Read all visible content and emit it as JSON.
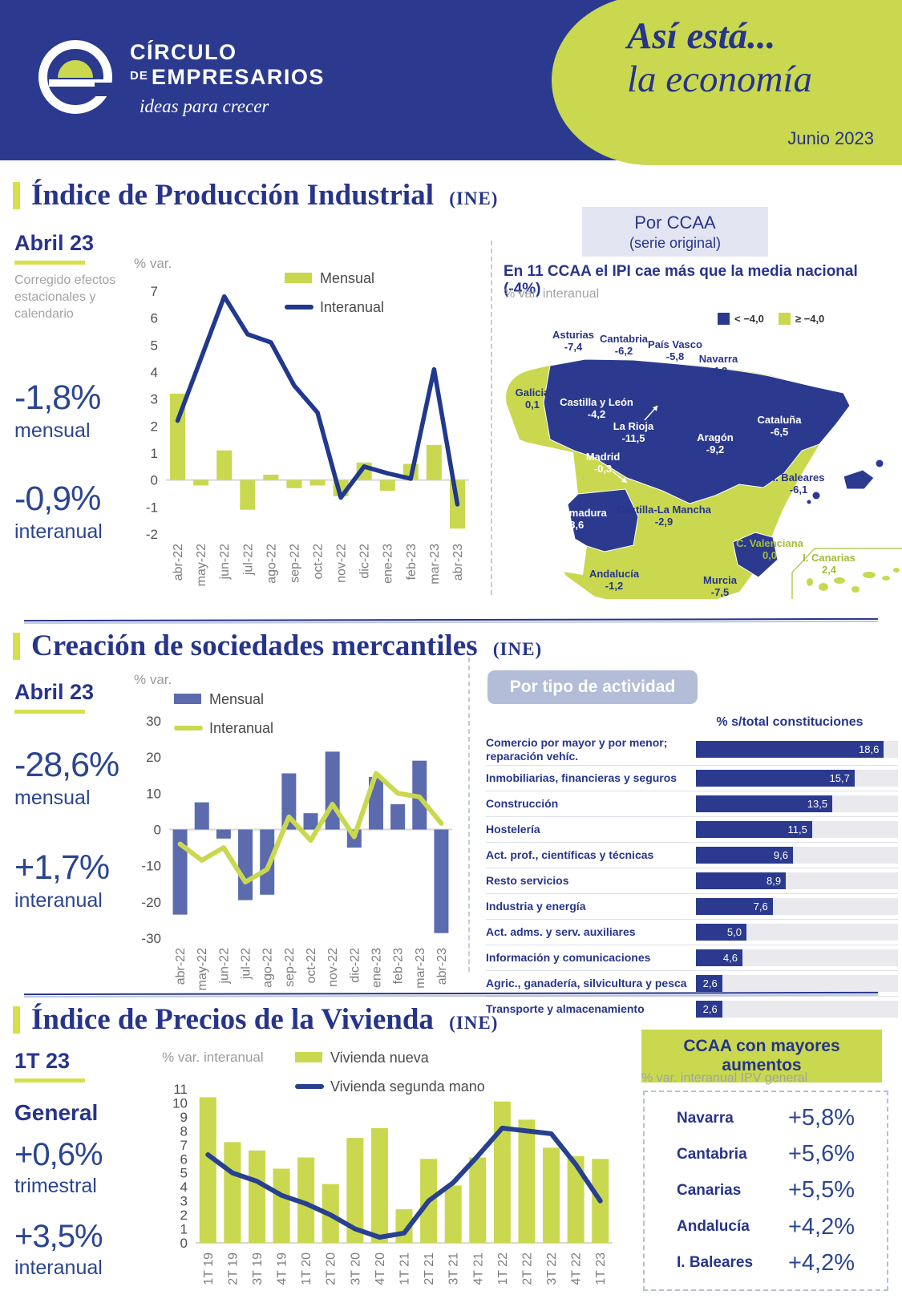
{
  "colors": {
    "navy": "#2b3a8f",
    "navyDark": "#27348b",
    "statBlue": "#2b4590",
    "lime": "#c9d84e",
    "socBar": "#5b6bae",
    "lineBlue": "#21388f",
    "grayNote": "#a3a3a3"
  },
  "header": {
    "logo_line1": "CÍRCULO",
    "logo_line2_small": "DE",
    "logo_line2": "EMPRESARIOS",
    "logo_tagline": "ideas para crecer",
    "title_line1": "Así está...",
    "title_line2": "la economía",
    "date": "Junio 2023"
  },
  "sections": {
    "ipi": {
      "title": "Índice de Producción Industrial",
      "source": "(INE)",
      "period": "Abril 23",
      "note": "Corregido efectos estacionales y calendario",
      "stat1_value": "-1,8%",
      "stat1_label": "mensual",
      "stat2_value": "-0,9%",
      "stat2_label": "interanual",
      "panel_box_line1": "Por CCAA",
      "panel_box_line2": "(serie original)"
    },
    "sociedades": {
      "title": "Creación de sociedades mercantiles",
      "source": "(INE)",
      "period": "Abril 23",
      "stat1_value": "-28,6%",
      "stat1_label": "mensual",
      "stat2_value": "+1,7%",
      "stat2_label": "interanual",
      "panel_box": "Por tipo de actividad"
    },
    "vivienda": {
      "title": "Índice de Precios de la Vivienda",
      "source": "(INE)",
      "period": "1T 23",
      "subject": "General",
      "stat1_value": "+0,6%",
      "stat1_label": "trimestral",
      "stat2_value": "+3,5%",
      "stat2_label": "interanual"
    }
  },
  "chart_data": [
    {
      "id": "ipi_combo",
      "type": "bar+line",
      "title": "% var.",
      "categories": [
        "abr-22",
        "may-22",
        "jun-22",
        "jul-22",
        "ago-22",
        "sep-22",
        "oct-22",
        "nov-22",
        "dic-22",
        "ene-23",
        "feb-23",
        "mar-23",
        "abr-23"
      ],
      "series": [
        {
          "name": "Mensual",
          "type": "bar",
          "color": "#c9d84e",
          "values": [
            3.2,
            -0.2,
            1.1,
            -1.1,
            0.2,
            -0.3,
            -0.2,
            -0.6,
            0.65,
            -0.4,
            0.6,
            1.3,
            -1.8
          ]
        },
        {
          "name": "Interanual",
          "type": "line",
          "color": "#21388f",
          "values": [
            2.2,
            4.5,
            6.8,
            5.4,
            5.1,
            3.5,
            2.5,
            -0.65,
            0.5,
            0.25,
            0.05,
            4.1,
            -0.9
          ]
        }
      ],
      "ylim": [
        -2,
        7
      ],
      "ystep": 1,
      "legend_position": "top-center",
      "grid": false
    },
    {
      "id": "ipi_map",
      "type": "map",
      "title": "En 11 CCAA el IPI cae más que la media nacional (-4%)",
      "note": "% var. interanual",
      "legend": [
        {
          "label": "< −4,0",
          "color": "#2b3a8f"
        },
        {
          "label": "≥ −4,0",
          "color": "#c9d84e"
        }
      ],
      "regions": [
        {
          "name": "Asturias",
          "value": "-7,4",
          "fill": "blue",
          "text": "navy",
          "x": 95,
          "y": 14
        },
        {
          "name": "Cantabria",
          "value": "-6,2",
          "fill": "blue",
          "text": "navy",
          "x": 158,
          "y": 19
        },
        {
          "name": "País Vasco",
          "value": "-5,8",
          "fill": "blue",
          "text": "navy",
          "x": 222,
          "y": 26
        },
        {
          "name": "Navarra",
          "value": "-4,2",
          "fill": "blue",
          "text": "navy",
          "x": 276,
          "y": 44
        },
        {
          "name": "Galicia",
          "value": "0,1",
          "fill": "green",
          "text": "navy",
          "x": 44,
          "y": 86
        },
        {
          "name": "Castilla y León",
          "value": "-4,2",
          "fill": "blue",
          "text": "white",
          "x": 124,
          "y": 98
        },
        {
          "name": "La Rioja",
          "value": "-11,5",
          "fill": "blue",
          "text": "white",
          "x": 170,
          "y": 128
        },
        {
          "name": "Cataluña",
          "value": "-6,5",
          "fill": "blue",
          "text": "white",
          "x": 352,
          "y": 120
        },
        {
          "name": "Aragón",
          "value": "-9,2",
          "fill": "blue",
          "text": "white",
          "x": 272,
          "y": 142
        },
        {
          "name": "Madrid",
          "value": "-0,3",
          "fill": "green",
          "text": "white",
          "x": 132,
          "y": 166
        },
        {
          "name": "I. Baleares",
          "value": "-6,1",
          "fill": "blue",
          "text": "navy",
          "x": 376,
          "y": 192
        },
        {
          "name": "Extremadura",
          "value": "-8,6",
          "fill": "blue",
          "text": "white",
          "x": 97,
          "y": 236
        },
        {
          "name": "Castilla-La Mancha",
          "value": "-2,9",
          "fill": "green",
          "text": "navy",
          "x": 208,
          "y": 232
        },
        {
          "name": "C. Valenciana",
          "value": "0,0",
          "fill": "green",
          "text": "green",
          "x": 340,
          "y": 274
        },
        {
          "name": "Andalucía",
          "value": "-1,2",
          "fill": "green",
          "text": "navy",
          "x": 146,
          "y": 312
        },
        {
          "name": "Murcia",
          "value": "-7,5",
          "fill": "blue",
          "text": "navy",
          "x": 278,
          "y": 320
        },
        {
          "name": "I. Canarias",
          "value": "2,4",
          "fill": "green",
          "text": "green",
          "x": 414,
          "y": 292
        }
      ]
    },
    {
      "id": "soc_combo",
      "type": "bar+line",
      "title": "% var.",
      "categories": [
        "abr-22",
        "may-22",
        "jun-22",
        "jul-22",
        "ago-22",
        "sep-22",
        "oct-22",
        "nov-22",
        "dic-22",
        "ene-23",
        "feb-23",
        "mar-23",
        "abr-23"
      ],
      "series": [
        {
          "name": "Mensual",
          "type": "bar",
          "color": "#5b6bae",
          "values": [
            -23.5,
            7.5,
            -2.5,
            -19.5,
            -18,
            15.5,
            4.5,
            21.5,
            -5,
            14.5,
            7,
            19,
            -28.6
          ]
        },
        {
          "name": "Interanual",
          "type": "line",
          "color": "#c9d84e",
          "values": [
            -4,
            -8.5,
            -5,
            -14.5,
            -11,
            3.5,
            -3,
            7,
            -2,
            15.5,
            10,
            9,
            1.7
          ]
        }
      ],
      "ylim": [
        -30,
        30
      ],
      "ystep": 10,
      "legend_position": "top-left",
      "grid": false
    },
    {
      "id": "soc_hbar",
      "type": "hbar",
      "axis_title": "% s/total constituciones",
      "xmax": 20,
      "rows": [
        {
          "label": "Comercio por mayor y por menor; reparación vehíc.",
          "value": 18.6,
          "display": "18,6"
        },
        {
          "label": "Inmobiliarias, financieras y seguros",
          "value": 15.7,
          "display": "15,7"
        },
        {
          "label": "Construcción",
          "value": 13.5,
          "display": "13,5"
        },
        {
          "label": "Hostelería",
          "value": 11.5,
          "display": "11,5"
        },
        {
          "label": "Act. prof., científicas y técnicas",
          "value": 9.6,
          "display": "9,6"
        },
        {
          "label": "Resto servicios",
          "value": 8.9,
          "display": "8,9"
        },
        {
          "label": "Industria y energía",
          "value": 7.6,
          "display": "7,6"
        },
        {
          "label": "Act. adms. y serv. auxiliares",
          "value": 5.0,
          "display": "5,0"
        },
        {
          "label": "Información y comunicaciones",
          "value": 4.6,
          "display": "4,6"
        },
        {
          "label": "Agric., ganadería, silvicultura y pesca",
          "value": 2.6,
          "display": "2,6"
        },
        {
          "label": "Transporte y almacenamiento",
          "value": 2.6,
          "display": "2,6"
        }
      ]
    },
    {
      "id": "viv_combo",
      "type": "bar+line",
      "title": "% var. interanual",
      "categories": [
        "1T 19",
        "2T 19",
        "3T 19",
        "4T 19",
        "1T 20",
        "2T 20",
        "3T 20",
        "4T 20",
        "1T 21",
        "2T 21",
        "3T 21",
        "4T 21",
        "1T 22",
        "2T 22",
        "3T 22",
        "4T 22",
        "1T 23"
      ],
      "series": [
        {
          "name": "Vivienda nueva",
          "type": "bar",
          "color": "#c9d84e",
          "values": [
            10.4,
            7.2,
            6.6,
            5.3,
            6.1,
            4.2,
            7.5,
            8.2,
            2.4,
            6.0,
            4.1,
            6.1,
            10.1,
            8.8,
            6.8,
            6.2,
            6.0
          ]
        },
        {
          "name": "Vivienda segunda mano",
          "type": "line",
          "color": "#27408f",
          "values": [
            6.3,
            5.0,
            4.4,
            3.4,
            2.8,
            2.0,
            1.0,
            0.4,
            0.7,
            3.0,
            4.3,
            6.2,
            8.2,
            8.0,
            7.8,
            5.6,
            3.0
          ]
        }
      ],
      "ylim": [
        0,
        11
      ],
      "ystep": 1,
      "legend_position": "top-right",
      "grid": false
    },
    {
      "id": "viv_top",
      "type": "table",
      "title": "CCAA con mayores aumentos",
      "note": "% var. interanual IPV general",
      "rows": [
        {
          "name": "Navarra",
          "value": "+5,8%"
        },
        {
          "name": "Cantabria",
          "value": "+5,6%"
        },
        {
          "name": "Canarias",
          "value": "+5,5%"
        },
        {
          "name": "Andalucía",
          "value": "+4,2%"
        },
        {
          "name": "I. Baleares",
          "value": "+4,2%"
        }
      ]
    }
  ]
}
